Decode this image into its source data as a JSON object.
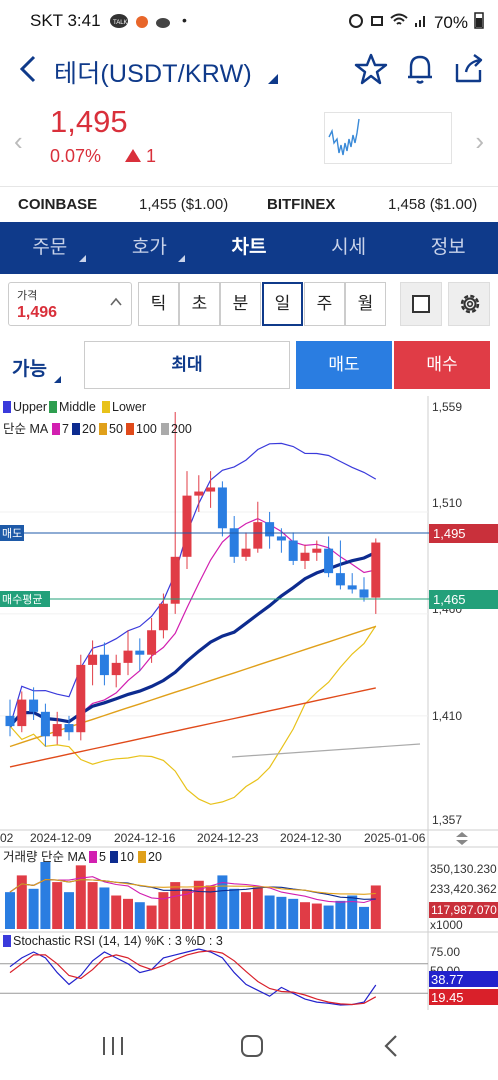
{
  "status_bar": {
    "time": "SKT 3:41",
    "battery": "70%"
  },
  "header": {
    "title": "테더(USDT/KRW)"
  },
  "price": {
    "current": "1,495",
    "change_pct": "0.07%",
    "change_abs": "1"
  },
  "exchanges": [
    {
      "name": "COINBASE",
      "value": "1,455 ($1.00)"
    },
    {
      "name": "BITFINEX",
      "value": "1,458 ($1.00)"
    }
  ],
  "tabs": [
    {
      "label": "주문",
      "has_caret": true,
      "active": false
    },
    {
      "label": "호가",
      "has_caret": true,
      "active": false
    },
    {
      "label": "차트",
      "has_caret": false,
      "active": true
    },
    {
      "label": "시세",
      "has_caret": false,
      "active": false
    },
    {
      "label": "정보",
      "has_caret": false,
      "active": false
    }
  ],
  "price_box": {
    "label": "가격",
    "value": "1,496"
  },
  "periods": [
    {
      "label": "틱",
      "active": false
    },
    {
      "label": "초",
      "active": false
    },
    {
      "label": "분",
      "active": false
    },
    {
      "label": "일",
      "active": true
    },
    {
      "label": "주",
      "active": false
    },
    {
      "label": "월",
      "active": false
    }
  ],
  "order": {
    "available_label": "가능",
    "max_label": "최대",
    "sell_label": "매도",
    "buy_label": "매수"
  },
  "colors": {
    "brand": "#0f3a8a",
    "up": "#e03c46",
    "down": "#2a7de1"
  },
  "chart_data": {
    "type": "candlestick",
    "bollinger_legend": [
      {
        "name": "Upper",
        "color": "#3a3adb"
      },
      {
        "name": "Middle",
        "color": "#2e9e4f"
      },
      {
        "name": "Lower",
        "color": "#e8c21a"
      }
    ],
    "ma_legend_title": "단순 MA",
    "ma_legend": [
      {
        "name": "7",
        "color": "#d21fb0"
      },
      {
        "name": "20",
        "color": "#0d2b8f"
      },
      {
        "name": "50",
        "color": "#e0a01a"
      },
      {
        "name": "100",
        "color": "#e04a1a"
      },
      {
        "name": "200",
        "color": "#aaaaaa"
      }
    ],
    "y_ticks": [
      "1,559",
      "1,510",
      "1,460",
      "1,410",
      "1,357"
    ],
    "y_range": [
      1357,
      1559
    ],
    "x_labels": [
      "02",
      "2024-12-09",
      "2024-12-16",
      "2024-12-23",
      "2024-12-30",
      "2025-01-06"
    ],
    "sell_line_label": "매도",
    "sell_line_value": "1,495",
    "avg_line_label": "매수평균",
    "avg_line_value": "1,465",
    "candles": [
      {
        "o": 1410,
        "h": 1418,
        "l": 1400,
        "c": 1405
      },
      {
        "o": 1405,
        "h": 1422,
        "l": 1402,
        "c": 1418
      },
      {
        "o": 1418,
        "h": 1424,
        "l": 1408,
        "c": 1412
      },
      {
        "o": 1412,
        "h": 1416,
        "l": 1395,
        "c": 1400
      },
      {
        "o": 1400,
        "h": 1412,
        "l": 1396,
        "c": 1406
      },
      {
        "o": 1406,
        "h": 1410,
        "l": 1398,
        "c": 1402
      },
      {
        "o": 1402,
        "h": 1440,
        "l": 1398,
        "c": 1435
      },
      {
        "o": 1435,
        "h": 1447,
        "l": 1425,
        "c": 1440
      },
      {
        "o": 1440,
        "h": 1446,
        "l": 1425,
        "c": 1430
      },
      {
        "o": 1430,
        "h": 1440,
        "l": 1424,
        "c": 1436
      },
      {
        "o": 1436,
        "h": 1452,
        "l": 1430,
        "c": 1442
      },
      {
        "o": 1442,
        "h": 1448,
        "l": 1432,
        "c": 1440
      },
      {
        "o": 1440,
        "h": 1458,
        "l": 1436,
        "c": 1452
      },
      {
        "o": 1452,
        "h": 1470,
        "l": 1448,
        "c": 1465
      },
      {
        "o": 1465,
        "h": 1559,
        "l": 1460,
        "c": 1488
      },
      {
        "o": 1488,
        "h": 1530,
        "l": 1482,
        "c": 1518
      },
      {
        "o": 1518,
        "h": 1528,
        "l": 1510,
        "c": 1520
      },
      {
        "o": 1520,
        "h": 1530,
        "l": 1512,
        "c": 1522
      },
      {
        "o": 1522,
        "h": 1525,
        "l": 1498,
        "c": 1502
      },
      {
        "o": 1502,
        "h": 1508,
        "l": 1485,
        "c": 1488
      },
      {
        "o": 1488,
        "h": 1500,
        "l": 1486,
        "c": 1492
      },
      {
        "o": 1492,
        "h": 1515,
        "l": 1490,
        "c": 1505
      },
      {
        "o": 1505,
        "h": 1510,
        "l": 1492,
        "c": 1498
      },
      {
        "o": 1498,
        "h": 1502,
        "l": 1490,
        "c": 1496
      },
      {
        "o": 1496,
        "h": 1500,
        "l": 1484,
        "c": 1486
      },
      {
        "o": 1486,
        "h": 1494,
        "l": 1482,
        "c": 1490
      },
      {
        "o": 1490,
        "h": 1496,
        "l": 1486,
        "c": 1492
      },
      {
        "o": 1492,
        "h": 1498,
        "l": 1478,
        "c": 1480
      },
      {
        "o": 1480,
        "h": 1496,
        "l": 1472,
        "c": 1474
      },
      {
        "o": 1474,
        "h": 1480,
        "l": 1470,
        "c": 1472
      },
      {
        "o": 1472,
        "h": 1478,
        "l": 1466,
        "c": 1468
      },
      {
        "o": 1468,
        "h": 1497,
        "l": 1460,
        "c": 1495
      }
    ],
    "volume_legend_title": "거래량 단순 MA",
    "volume_legend": [
      {
        "name": "5",
        "color": "#d21fb0"
      },
      {
        "name": "10",
        "color": "#0d2b8f"
      },
      {
        "name": "20",
        "color": "#e0a01a"
      }
    ],
    "volume_ticks": [
      "350,130.230",
      "233,420.362",
      "117,987.070",
      "x1000"
    ],
    "rsi_legend": "Stochastic RSI (14, 14) %K : 3  %D : 3",
    "rsi_ticks": [
      "75.00",
      "50.00"
    ],
    "rsi_k_value": "38.77",
    "rsi_d_value": "19.45"
  }
}
